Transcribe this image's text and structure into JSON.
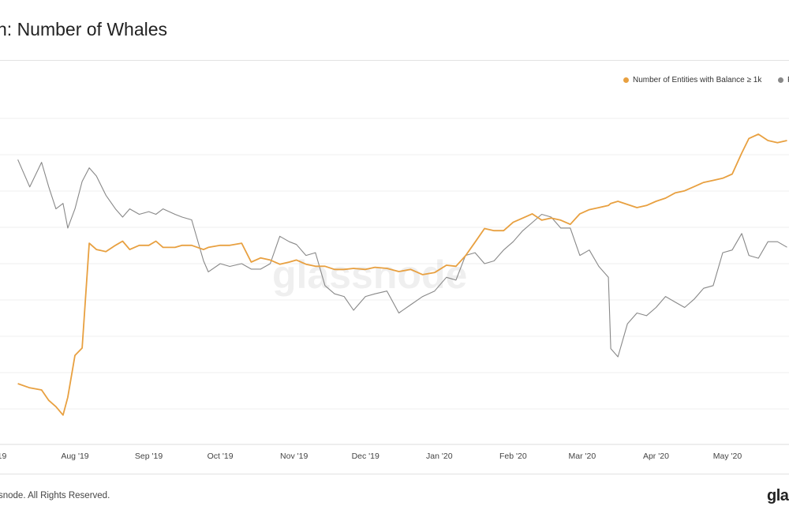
{
  "header": {
    "title": "n: Number of Whales"
  },
  "legend": {
    "items": [
      {
        "label": "Number of Entities with Balance ≥ 1k",
        "color": "#e8a040"
      },
      {
        "label": "P",
        "color": "#888888"
      }
    ]
  },
  "watermark": "glassnode",
  "footer": {
    "copyright": "snode. All Rights Reserved."
  },
  "logo": {
    "text": "gla"
  },
  "chart_data": {
    "type": "line",
    "title": "n: Number of Whales",
    "xlabel": "",
    "ylabel": "",
    "grid": true,
    "legend_position": "top-right",
    "x_ticks": [
      "'19",
      "Aug '19",
      "Sep '19",
      "Oct '19",
      "Nov '19",
      "Dec '19",
      "Jan '20",
      "Feb '20",
      "Mar '20",
      "Apr '20",
      "May '20"
    ],
    "x": [
      "2019-07-08",
      "2019-07-13",
      "2019-07-18",
      "2019-07-21",
      "2019-07-24",
      "2019-07-27",
      "2019-07-29",
      "2019-08-01",
      "2019-08-04",
      "2019-08-07",
      "2019-08-10",
      "2019-08-14",
      "2019-08-18",
      "2019-08-21",
      "2019-08-24",
      "2019-08-28",
      "2019-09-01",
      "2019-09-04",
      "2019-09-07",
      "2019-09-12",
      "2019-09-15",
      "2019-09-19",
      "2019-09-24",
      "2019-09-26",
      "2019-10-01",
      "2019-10-05",
      "2019-10-10",
      "2019-10-14",
      "2019-10-18",
      "2019-10-22",
      "2019-10-26",
      "2019-10-30",
      "2019-11-02",
      "2019-11-06",
      "2019-11-10",
      "2019-11-14",
      "2019-11-18",
      "2019-11-22",
      "2019-11-26",
      "2019-12-01",
      "2019-12-05",
      "2019-12-10",
      "2019-12-15",
      "2019-12-20",
      "2019-12-25",
      "2019-12-30",
      "2020-01-04",
      "2020-01-08",
      "2020-01-12",
      "2020-01-16",
      "2020-01-20",
      "2020-01-24",
      "2020-01-28",
      "2020-02-01",
      "2020-02-05",
      "2020-02-09",
      "2020-02-13",
      "2020-02-17",
      "2020-02-21",
      "2020-02-25",
      "2020-02-29",
      "2020-03-04",
      "2020-03-08",
      "2020-03-12",
      "2020-03-13",
      "2020-03-16",
      "2020-03-20",
      "2020-03-24",
      "2020-03-28",
      "2020-04-01",
      "2020-04-05",
      "2020-04-09",
      "2020-04-13",
      "2020-04-17",
      "2020-04-21",
      "2020-04-25",
      "2020-04-29",
      "2020-05-03",
      "2020-05-07",
      "2020-05-10",
      "2020-05-14",
      "2020-05-18",
      "2020-05-22",
      "2020-05-26"
    ],
    "series": [
      {
        "name": "Number of Entities with Balance ≥ 1k",
        "color": "#e8a040",
        "values": [
          1638,
          1634,
          1632,
          1622,
          1616,
          1608,
          1625,
          1665,
          1672,
          1772,
          1766,
          1764,
          1770,
          1774,
          1766,
          1770,
          1770,
          1774,
          1768,
          1768,
          1770,
          1770,
          1766,
          1768,
          1770,
          1770,
          1772,
          1754,
          1758,
          1756,
          1752,
          1754,
          1756,
          1752,
          1750,
          1750,
          1747,
          1747,
          1748,
          1747,
          1749,
          1748,
          1745,
          1747,
          1742,
          1744,
          1751,
          1750,
          1760,
          1773,
          1786,
          1784,
          1784,
          1792,
          1796,
          1800,
          1794,
          1796,
          1794,
          1790,
          1800,
          1804,
          1806,
          1808,
          1810,
          1812,
          1809,
          1806,
          1808,
          1812,
          1815,
          1820,
          1822,
          1826,
          1830,
          1832,
          1834,
          1838,
          1858,
          1872,
          1876,
          1870,
          1868,
          1870
        ]
      },
      {
        "name": "P",
        "color": "#888888",
        "values": [
          12200,
          11200,
          12100,
          11200,
          10400,
          10600,
          9700,
          10400,
          11400,
          11900,
          11600,
          10900,
          10400,
          10100,
          10400,
          10200,
          10300,
          10200,
          10400,
          10200,
          10100,
          10000,
          8500,
          8100,
          8400,
          8300,
          8400,
          8200,
          8200,
          8400,
          9400,
          9200,
          9100,
          8700,
          8800,
          7600,
          7300,
          7200,
          6700,
          7200,
          7300,
          7400,
          6600,
          6900,
          7200,
          7400,
          7900,
          7800,
          8700,
          8800,
          8400,
          8500,
          8900,
          9200,
          9600,
          9900,
          10200,
          10100,
          9700,
          9700,
          8700,
          8900,
          8300,
          7900,
          5300,
          5000,
          6200,
          6600,
          6500,
          6800,
          7200,
          7000,
          6800,
          7100,
          7500,
          7600,
          8800,
          8900,
          9500,
          8700,
          8600,
          9200,
          9200,
          9000
        ]
      }
    ]
  }
}
